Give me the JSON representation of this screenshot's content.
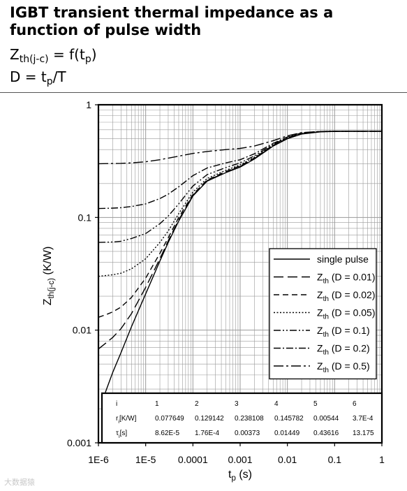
{
  "header": {
    "title": "IGBT transient thermal impedance as a function of pulse width",
    "formula1": {
      "main": "Z",
      "sub": "th(j-c)",
      "mid": " = f(t",
      "sub2": "p",
      "end": ")"
    },
    "formula2": {
      "main": "D = t",
      "sub": "p",
      "end": "/T"
    }
  },
  "watermark": "大数据猿",
  "chart_data": {
    "type": "line",
    "title": "",
    "xlabel": "t",
    "xlabel_sub": "p",
    "xlabel_unit": " (s)",
    "ylabel": "Z",
    "ylabel_sub": "th(j-c)",
    "ylabel_unit": " (K/W)",
    "xscale": "log",
    "yscale": "log",
    "xlim": [
      1e-06,
      1
    ],
    "ylim": [
      0.001,
      1
    ],
    "x_ticks": [
      "1E-6",
      "1E-5",
      "0.0001",
      "0.001",
      "0.01",
      "0.1",
      "1"
    ],
    "y_ticks": [
      "0.001",
      "0.01",
      "0.1",
      "1"
    ],
    "grid": true,
    "legend_position": "bottom-right",
    "series": [
      {
        "name": "single pulse",
        "legend_sub": "",
        "legend_suffix": "",
        "dash": "solid",
        "x": [
          1.4e-06,
          2e-06,
          3e-06,
          5e-06,
          1e-05,
          2e-05,
          3e-05,
          5e-05,
          0.0001,
          0.0002,
          0.0005,
          0.001,
          0.002,
          0.005,
          0.01,
          0.02,
          0.05,
          0.1,
          0.2,
          0.5,
          1
        ],
        "y": [
          0.0028,
          0.0042,
          0.0063,
          0.0107,
          0.021,
          0.041,
          0.06,
          0.093,
          0.155,
          0.21,
          0.25,
          0.28,
          0.33,
          0.43,
          0.5,
          0.55,
          0.575,
          0.58,
          0.582,
          0.582,
          0.582
        ]
      },
      {
        "name": "Z",
        "legend_sub": "th",
        "legend_suffix": " (D = 0.01)",
        "dash": "long-dash",
        "x": [
          1e-06,
          1.5e-06,
          2e-06,
          3e-06,
          5e-06,
          1e-05,
          2e-05,
          3e-05,
          5e-05,
          0.0001,
          0.0002,
          0.0005,
          0.001,
          0.002,
          0.005,
          0.01,
          0.02,
          0.05,
          0.1,
          0.2,
          0.5,
          1
        ],
        "y": [
          0.0068,
          0.0078,
          0.0086,
          0.0103,
          0.014,
          0.024,
          0.043,
          0.062,
          0.095,
          0.157,
          0.212,
          0.252,
          0.283,
          0.333,
          0.433,
          0.502,
          0.552,
          0.577,
          0.581,
          0.582,
          0.582,
          0.582
        ]
      },
      {
        "name": "Z",
        "legend_sub": "th",
        "legend_suffix": " (D = 0.02)",
        "dash": "medium-dash",
        "x": [
          1e-06,
          1.5e-06,
          2e-06,
          3e-06,
          5e-06,
          1e-05,
          2e-05,
          3e-05,
          5e-05,
          0.0001,
          0.0002,
          0.0005,
          0.001,
          0.002,
          0.005,
          0.01,
          0.02,
          0.05,
          0.1,
          0.2,
          0.5,
          1
        ],
        "y": [
          0.013,
          0.0138,
          0.0145,
          0.016,
          0.0195,
          0.029,
          0.048,
          0.066,
          0.1,
          0.16,
          0.215,
          0.256,
          0.287,
          0.337,
          0.437,
          0.505,
          0.555,
          0.578,
          0.581,
          0.582,
          0.582,
          0.582
        ]
      },
      {
        "name": "Z",
        "legend_sub": "th",
        "legend_suffix": " (D = 0.05)",
        "dash": "dotted",
        "x": [
          1e-06,
          2e-06,
          3e-06,
          5e-06,
          1e-05,
          2e-05,
          3e-05,
          5e-05,
          0.0001,
          0.0002,
          0.0005,
          0.001,
          0.002,
          0.005,
          0.01,
          0.02,
          0.05,
          0.1,
          0.2,
          0.5,
          1
        ],
        "y": [
          0.03,
          0.031,
          0.032,
          0.035,
          0.043,
          0.06,
          0.076,
          0.108,
          0.168,
          0.222,
          0.262,
          0.293,
          0.343,
          0.44,
          0.508,
          0.557,
          0.579,
          0.582,
          0.582,
          0.582,
          0.582
        ]
      },
      {
        "name": "Z",
        "legend_sub": "th",
        "legend_suffix": " (D = 0.1)",
        "dash": "dash-dot-dot",
        "x": [
          1e-06,
          2e-06,
          3e-06,
          5e-06,
          1e-05,
          2e-05,
          3e-05,
          5e-05,
          0.0001,
          0.0002,
          0.0005,
          0.001,
          0.002,
          0.005,
          0.01,
          0.02,
          0.05,
          0.1,
          0.2,
          0.5,
          1
        ],
        "y": [
          0.06,
          0.0605,
          0.0615,
          0.065,
          0.072,
          0.088,
          0.103,
          0.132,
          0.19,
          0.24,
          0.277,
          0.305,
          0.352,
          0.447,
          0.512,
          0.56,
          0.579,
          0.582,
          0.582,
          0.582,
          0.582
        ]
      },
      {
        "name": "Z",
        "legend_sub": "th",
        "legend_suffix": " (D = 0.2)",
        "dash": "dash-dot",
        "x": [
          1e-06,
          2e-06,
          3e-06,
          5e-06,
          1e-05,
          2e-05,
          3e-05,
          5e-05,
          0.0001,
          0.0002,
          0.0005,
          0.001,
          0.002,
          0.005,
          0.01,
          0.02,
          0.05,
          0.1,
          0.2,
          0.5,
          1
        ],
        "y": [
          0.12,
          0.121,
          0.122,
          0.125,
          0.132,
          0.147,
          0.161,
          0.187,
          0.235,
          0.275,
          0.305,
          0.325,
          0.367,
          0.455,
          0.518,
          0.563,
          0.58,
          0.582,
          0.582,
          0.582,
          0.582
        ]
      },
      {
        "name": "Z",
        "legend_sub": "th",
        "legend_suffix": " (D = 0.5)",
        "dash": "long-dash-dot",
        "x": [
          1e-06,
          2e-06,
          3e-06,
          5e-06,
          1e-05,
          2e-05,
          3e-05,
          5e-05,
          0.0001,
          0.0002,
          0.0005,
          0.001,
          0.002,
          0.005,
          0.01,
          0.02,
          0.05,
          0.1,
          0.2,
          0.5,
          1
        ],
        "y": [
          0.3,
          0.301,
          0.302,
          0.305,
          0.312,
          0.325,
          0.336,
          0.35,
          0.37,
          0.385,
          0.4,
          0.41,
          0.43,
          0.48,
          0.53,
          0.567,
          0.58,
          0.582,
          0.582,
          0.582,
          0.582
        ]
      }
    ],
    "table": {
      "columns": [
        "i",
        "1",
        "2",
        "3",
        "4",
        "5",
        "6"
      ],
      "rows": [
        {
          "label": "r",
          "label_sub": "i",
          "label_suffix": "[K/W]",
          "values": [
            "0.077649",
            "0.129142",
            "0.238108",
            "0.145782",
            "0.00544",
            "3.7E-4"
          ]
        },
        {
          "label": "τ",
          "label_sub": "i",
          "label_suffix": "[s]",
          "values": [
            "8.62E-5",
            "1.76E-4",
            "0.00373",
            "0.01449",
            "0.43616",
            "13.175"
          ]
        }
      ]
    }
  }
}
